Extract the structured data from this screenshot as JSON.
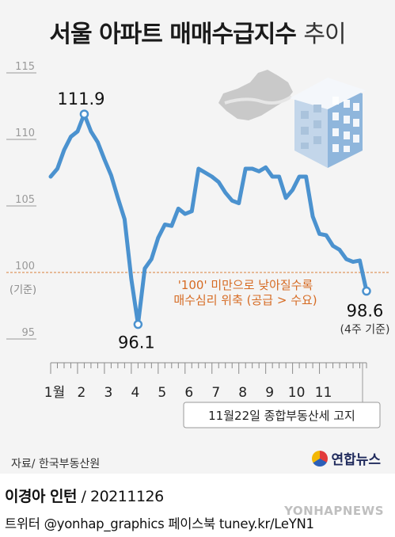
{
  "title": {
    "main": "서울 아파트 매매수급지수",
    "suffix": "추이"
  },
  "chart_data": {
    "type": "line",
    "title": "서울 아파트 매매수급지수 추이",
    "ylim": [
      93.5,
      116
    ],
    "yticks": [
      95,
      100,
      105,
      110,
      115
    ],
    "y_label_extra": "(기준)",
    "x_labels": [
      "1월",
      "2",
      "3",
      "4",
      "5",
      "6",
      "7",
      "8",
      "9",
      "10",
      "11"
    ],
    "x_label_weeks": [
      0,
      4,
      8,
      12,
      16,
      20,
      24,
      28,
      32,
      36,
      40
    ],
    "reference_line": 100,
    "grid": false,
    "series": [
      {
        "values": [
          107.2,
          107.8,
          109.2,
          110.2,
          110.6,
          111.9,
          110.6,
          109.8,
          108.5,
          107.3,
          105.6,
          104.0,
          99.5,
          96.1,
          100.3,
          101.0,
          102.6,
          103.6,
          103.5,
          104.8,
          104.4,
          104.6,
          107.8,
          107.5,
          107.2,
          106.8,
          106.0,
          105.4,
          105.2,
          107.8,
          107.8,
          107.6,
          107.9,
          107.2,
          107.2,
          105.6,
          106.2,
          107.2,
          107.2,
          104.2,
          102.9,
          102.8,
          102.0,
          101.7,
          101.0,
          100.8,
          100.9,
          98.6
        ]
      }
    ],
    "annotations": {
      "max": {
        "label": "111.9"
      },
      "min": {
        "label": "96.1"
      },
      "last": {
        "label": "98.6",
        "note": "(4주 기준)"
      },
      "below_line_note": [
        "'100' 미만으로 낮아질수록",
        "매수심리 위축 (공급 > 수요)"
      ],
      "event": "11월22일 종합부동산세 고지"
    }
  },
  "colors": {
    "line": "#4b92cf",
    "ref": "#d9803a",
    "note": "#d66b23"
  },
  "footer": {
    "source": "자료/ 한국부동산원",
    "logo": "연합뉴스",
    "author_name": "이경아 인턴",
    "author_date": " / 20211126",
    "social": "트위터 @yonhap_graphics  페이스북 tuney.kr/LeYN1",
    "watermark": "YONHAPNEWS"
  }
}
